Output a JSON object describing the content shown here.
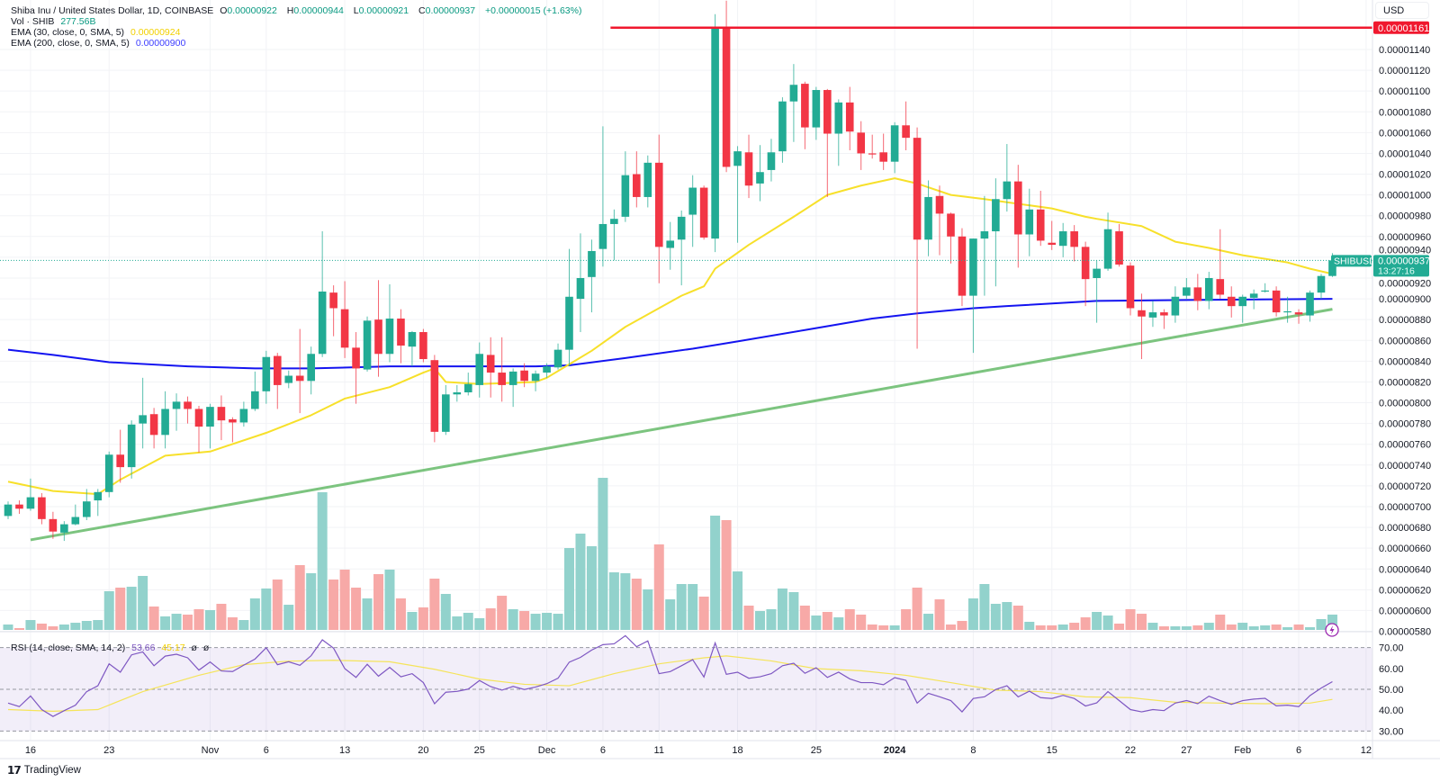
{
  "header": {
    "symbol_title": "Shiba Inu / United States Dollar, 1D, COINBASE",
    "o_label": "O",
    "o": "0.00000922",
    "h_label": "H",
    "h": "0.00000944",
    "l_label": "L",
    "l": "0.00000921",
    "c_label": "C",
    "c": "0.00000937",
    "change": "+0.00000015 (+1.63%)"
  },
  "volume_legend": {
    "label": "Vol · SHIB",
    "value": "277.56B"
  },
  "ema30": {
    "label": "EMA (30, close, 0, SMA, 5)",
    "value": "0.00000924"
  },
  "ema200": {
    "label": "EMA (200, close, 0, SMA, 5)",
    "value": "0.00000900"
  },
  "rsi_legend": {
    "label": "RSI (14, close, SMA, 14, 2)",
    "value": "53.66",
    "sma_value": "45.17",
    "extra1": "ø",
    "extra2": "ø"
  },
  "price_axis": {
    "currency": "USD",
    "ticks": [
      "0.00001140",
      "0.00001120",
      "0.00001100",
      "0.00001080",
      "0.00001060",
      "0.00001040",
      "0.00001020",
      "0.00001000",
      "0.00000980",
      "0.00000960",
      "0.00000940",
      "0.00000920",
      "0.00000900",
      "0.00000880",
      "0.00000860",
      "0.00000840",
      "0.00000820",
      "0.00000800",
      "0.00000780",
      "0.00000760",
      "0.00000740",
      "0.00000720",
      "0.00000700",
      "0.00000680",
      "0.00000660",
      "0.00000640",
      "0.00000620",
      "0.00000600",
      "0.00000580"
    ],
    "resistance_label": "0.00001161",
    "symbol_tag": "SHIBUSD",
    "last_price": "0.00000937",
    "countdown": "13:27:16"
  },
  "rsi_axis": {
    "ticks": [
      "70.00",
      "60.00",
      "50.00",
      "40.00",
      "30.00"
    ]
  },
  "time_axis": {
    "labels": [
      {
        "text": "16",
        "date": "2023-10-16"
      },
      {
        "text": "23",
        "date": "2023-10-23"
      },
      {
        "text": "Nov",
        "date": "2023-11-01"
      },
      {
        "text": "6",
        "date": "2023-11-06"
      },
      {
        "text": "13",
        "date": "2023-11-13"
      },
      {
        "text": "20",
        "date": "2023-11-20"
      },
      {
        "text": "25",
        "date": "2023-11-25"
      },
      {
        "text": "Dec",
        "date": "2023-12-01"
      },
      {
        "text": "6",
        "date": "2023-12-06"
      },
      {
        "text": "11",
        "date": "2023-12-11"
      },
      {
        "text": "18",
        "date": "2023-12-18"
      },
      {
        "text": "25",
        "date": "2023-12-25"
      },
      {
        "text": "2024",
        "date": "2024-01-01",
        "bold": true
      },
      {
        "text": "8",
        "date": "2024-01-08"
      },
      {
        "text": "15",
        "date": "2024-01-15"
      },
      {
        "text": "22",
        "date": "2024-01-22"
      },
      {
        "text": "27",
        "date": "2024-01-27"
      },
      {
        "text": "Feb",
        "date": "2024-02-01"
      },
      {
        "text": "6",
        "date": "2024-02-06"
      },
      {
        "text": "12",
        "date": "2024-02-12"
      }
    ]
  },
  "branding": {
    "name": "TradingView"
  },
  "colors": {
    "up": "#22ab94",
    "down": "#f23645",
    "vol_up": "#92d2cc",
    "vol_down": "#f7a9a7",
    "ema30": "#f7e02a",
    "ema200": "#1414f0",
    "trendline": "#7cc47f",
    "resistance": "#f0182e",
    "rsi": "#7e57c2",
    "rsi_sma": "#f5e45a"
  },
  "chart_data": {
    "type": "candlestick",
    "interval": "1D",
    "start_date": "2023-10-14",
    "price_unit": "1e-8 USD",
    "ylim": [
      580,
      1180
    ],
    "candles_ohlc": [
      [
        691,
        705,
        688,
        702
      ],
      [
        702,
        706,
        693,
        698
      ],
      [
        698,
        727,
        696,
        709
      ],
      [
        709,
        713,
        683,
        688
      ],
      [
        688,
        695,
        669,
        676
      ],
      [
        675,
        686,
        667,
        683
      ],
      [
        683,
        702,
        682,
        690
      ],
      [
        690,
        717,
        687,
        705
      ],
      [
        706,
        717,
        691,
        714
      ],
      [
        714,
        753,
        709,
        750
      ],
      [
        750,
        774,
        723,
        738
      ],
      [
        738,
        783,
        727,
        779
      ],
      [
        780,
        824,
        756,
        788
      ],
      [
        789,
        795,
        756,
        769
      ],
      [
        769,
        811,
        756,
        794
      ],
      [
        794,
        809,
        773,
        801
      ],
      [
        801,
        806,
        780,
        794
      ],
      [
        794,
        797,
        752,
        777
      ],
      [
        777,
        799,
        756,
        796
      ],
      [
        796,
        807,
        764,
        783
      ],
      [
        784,
        786,
        762,
        781
      ],
      [
        781,
        801,
        777,
        794
      ],
      [
        794,
        830,
        792,
        811
      ],
      [
        811,
        850,
        799,
        844
      ],
      [
        845,
        848,
        794,
        817
      ],
      [
        819,
        831,
        814,
        826
      ],
      [
        826,
        871,
        790,
        821
      ],
      [
        821,
        854,
        808,
        847
      ],
      [
        847,
        965,
        844,
        907
      ],
      [
        906,
        913,
        864,
        891
      ],
      [
        890,
        917,
        843,
        853
      ],
      [
        853,
        868,
        799,
        833
      ],
      [
        832,
        883,
        830,
        879
      ],
      [
        880,
        918,
        825,
        847
      ],
      [
        847,
        914,
        839,
        881
      ],
      [
        881,
        890,
        838,
        855
      ],
      [
        854,
        869,
        835,
        868
      ],
      [
        868,
        871,
        839,
        842
      ],
      [
        841,
        846,
        762,
        772
      ],
      [
        772,
        817,
        769,
        808
      ],
      [
        808,
        817,
        801,
        810
      ],
      [
        810,
        829,
        807,
        818
      ],
      [
        817,
        858,
        805,
        847
      ],
      [
        846,
        863,
        805,
        829
      ],
      [
        829,
        863,
        801,
        817
      ],
      [
        817,
        833,
        796,
        830
      ],
      [
        831,
        838,
        815,
        821
      ],
      [
        821,
        831,
        811,
        828
      ],
      [
        829,
        838,
        824,
        835
      ],
      [
        834,
        857,
        832,
        851
      ],
      [
        851,
        948,
        835,
        902
      ],
      [
        900,
        963,
        868,
        920
      ],
      [
        921,
        957,
        887,
        946
      ],
      [
        948,
        1066,
        931,
        972
      ],
      [
        972,
        986,
        937,
        977
      ],
      [
        979,
        1042,
        974,
        1019
      ],
      [
        1020,
        1042,
        988,
        998
      ],
      [
        998,
        1038,
        988,
        1031
      ],
      [
        1031,
        1058,
        915,
        950
      ],
      [
        949,
        974,
        928,
        956
      ],
      [
        957,
        985,
        913,
        979
      ],
      [
        981,
        1019,
        950,
        1007
      ],
      [
        1007,
        1009,
        957,
        959
      ],
      [
        958,
        1174,
        945,
        1160
      ],
      [
        1160,
        1187,
        1022,
        1027
      ],
      [
        1028,
        1047,
        954,
        1042
      ],
      [
        1041,
        1058,
        997,
        1009
      ],
      [
        1011,
        1048,
        994,
        1022
      ],
      [
        1024,
        1054,
        1013,
        1041
      ],
      [
        1042,
        1094,
        1031,
        1090
      ],
      [
        1090,
        1126,
        1051,
        1106
      ],
      [
        1107,
        1109,
        1044,
        1065
      ],
      [
        1065,
        1104,
        1053,
        1101
      ],
      [
        1101,
        1102,
        998,
        1059
      ],
      [
        1059,
        1092,
        1028,
        1089
      ],
      [
        1089,
        1104,
        1043,
        1061
      ],
      [
        1060,
        1071,
        1024,
        1040
      ],
      [
        1040,
        1058,
        1035,
        1039
      ],
      [
        1041,
        1059,
        1024,
        1032
      ],
      [
        1032,
        1070,
        1021,
        1067
      ],
      [
        1067,
        1090,
        1043,
        1055
      ],
      [
        1055,
        1065,
        852,
        957
      ],
      [
        957,
        1014,
        941,
        998
      ],
      [
        999,
        1009,
        942,
        982
      ],
      [
        982,
        983,
        934,
        960
      ],
      [
        960,
        968,
        893,
        903
      ],
      [
        903,
        958,
        848,
        958
      ],
      [
        958,
        999,
        903,
        965
      ],
      [
        965,
        1016,
        912,
        996
      ],
      [
        996,
        1049,
        984,
        1013
      ],
      [
        1013,
        1029,
        930,
        962
      ],
      [
        962,
        1006,
        941,
        986
      ],
      [
        986,
        1004,
        951,
        956
      ],
      [
        954,
        975,
        947,
        952
      ],
      [
        951,
        973,
        940,
        965
      ],
      [
        965,
        971,
        936,
        950
      ],
      [
        950,
        955,
        893,
        919
      ],
      [
        920,
        937,
        877,
        929
      ],
      [
        929,
        983,
        927,
        967
      ],
      [
        965,
        972,
        931,
        933
      ],
      [
        932,
        935,
        884,
        891
      ],
      [
        889,
        905,
        842,
        883
      ],
      [
        882,
        898,
        873,
        887
      ],
      [
        887,
        890,
        871,
        884
      ],
      [
        884,
        912,
        877,
        902
      ],
      [
        903,
        920,
        900,
        911
      ],
      [
        911,
        924,
        889,
        898
      ],
      [
        898,
        926,
        890,
        920
      ],
      [
        919,
        967,
        900,
        904
      ],
      [
        902,
        912,
        882,
        893
      ],
      [
        893,
        904,
        877,
        902
      ],
      [
        901,
        909,
        890,
        905
      ],
      [
        907,
        915,
        906,
        908
      ],
      [
        908,
        912,
        883,
        887
      ],
      [
        888,
        902,
        877,
        888
      ],
      [
        887,
        890,
        876,
        885
      ],
      [
        884,
        908,
        878,
        906
      ],
      [
        906,
        924,
        900,
        922
      ],
      [
        922,
        944,
        921,
        937
      ]
    ],
    "volume_B": [
      98,
      33,
      179,
      114,
      65,
      98,
      130,
      163,
      179,
      701,
      766,
      782,
      978,
      424,
      245,
      293,
      277,
      375,
      359,
      473,
      228,
      179,
      571,
      750,
      913,
      456,
      1174,
      1027,
      2494,
      913,
      1092,
      766,
      571,
      1011,
      1092,
      571,
      326,
      408,
      929,
      652,
      245,
      310,
      212,
      391,
      619,
      375,
      342,
      293,
      310,
      293,
      1483,
      1744,
      1516,
      2755,
      1043,
      1027,
      929,
      734,
      1549,
      554,
      831,
      831,
      603,
      2070,
      1989,
      1060,
      440,
      342,
      375,
      750,
      685,
      440,
      261,
      326,
      228,
      375,
      277,
      98,
      82,
      82,
      375,
      766,
      293,
      554,
      98,
      163,
      571,
      831,
      473,
      505,
      440,
      147,
      82,
      82,
      98,
      130,
      228,
      326,
      261,
      114,
      375,
      293,
      130,
      65,
      65,
      65,
      82,
      130,
      277,
      98,
      130,
      65,
      82,
      98,
      49,
      98,
      49,
      196,
      277.56
    ],
    "ema30_points": [
      [
        0,
        724
      ],
      [
        4,
        715
      ],
      [
        8,
        712
      ],
      [
        10,
        726
      ],
      [
        14,
        749
      ],
      [
        18,
        753
      ],
      [
        23,
        771
      ],
      [
        27,
        788
      ],
      [
        30,
        804
      ],
      [
        34,
        815
      ],
      [
        37,
        829
      ],
      [
        38,
        833
      ],
      [
        39,
        820
      ],
      [
        42,
        818
      ],
      [
        47,
        820
      ],
      [
        48,
        824
      ],
      [
        52,
        850
      ],
      [
        55,
        873
      ],
      [
        57,
        885
      ],
      [
        60,
        903
      ],
      [
        62,
        912
      ],
      [
        63,
        929
      ],
      [
        66,
        952
      ],
      [
        70,
        979
      ],
      [
        73,
        1000
      ],
      [
        76,
        1009
      ],
      [
        79,
        1016
      ],
      [
        81,
        1011
      ],
      [
        84,
        1000
      ],
      [
        87,
        996
      ],
      [
        89,
        993
      ],
      [
        93,
        987
      ],
      [
        96,
        979
      ],
      [
        97,
        977
      ],
      [
        101,
        970
      ],
      [
        104,
        955
      ],
      [
        107,
        949
      ],
      [
        110,
        942
      ],
      [
        114,
        935
      ],
      [
        116,
        929
      ],
      [
        118,
        924
      ]
    ],
    "ema200_points": [
      [
        0,
        851
      ],
      [
        4,
        846
      ],
      [
        9,
        839
      ],
      [
        16,
        835
      ],
      [
        22,
        833
      ],
      [
        27,
        833
      ],
      [
        34,
        835
      ],
      [
        40,
        835
      ],
      [
        47,
        835
      ],
      [
        50,
        836
      ],
      [
        55,
        843
      ],
      [
        61,
        852
      ],
      [
        65,
        859
      ],
      [
        71,
        870
      ],
      [
        77,
        881
      ],
      [
        81,
        886
      ],
      [
        86,
        891
      ],
      [
        89,
        893
      ],
      [
        97,
        898
      ],
      [
        106,
        899
      ],
      [
        118,
        900
      ]
    ],
    "trendline": [
      [
        2,
        668
      ],
      [
        118,
        890
      ]
    ],
    "resistance": {
      "start_index": 54,
      "price": 1161
    },
    "rsi": [
      43.4,
      41.7,
      46.8,
      40.3,
      37,
      39.8,
      42.4,
      48.9,
      51.7,
      62.2,
      58.2,
      66.5,
      67.9,
      61.3,
      65.9,
      66.8,
      65.1,
      59.2,
      63.1,
      58.8,
      58.5,
      61.6,
      64.5,
      69.9,
      61.8,
      63.2,
      61.5,
      66.1,
      73.7,
      69.7,
      59.9,
      55.7,
      62.0,
      56.3,
      60.5,
      56.0,
      57.5,
      53.2,
      43.1,
      48.6,
      49.0,
      50.1,
      54.2,
      51.3,
      49.6,
      51.4,
      49.9,
      51.1,
      52.7,
      55.3,
      63.0,
      65.3,
      68.8,
      71.4,
      71.8,
      75.7,
      70.4,
      73.2,
      57.5,
      58.5,
      61.3,
      64.2,
      55.9,
      72.2,
      57.2,
      58.2,
      55.3,
      56.0,
      57.5,
      61.3,
      62.5,
      57.7,
      60.3,
      55.7,
      58.2,
      55.0,
      53.2,
      53.2,
      52.2,
      55.6,
      54.3,
      43.4,
      48.1,
      46.4,
      44.6,
      39.2,
      45.6,
      46.4,
      49.9,
      51.7,
      46.4,
      49.1,
      46.0,
      45.6,
      47.1,
      45.6,
      42.0,
      43.5,
      48.9,
      44.6,
      40.3,
      39.2,
      40.3,
      39.8,
      43.4,
      44.6,
      43.1,
      46.7,
      44.6,
      42.8,
      44.6,
      45.3,
      45.7,
      42.1,
      42.4,
      41.7,
      47.0,
      50.6,
      53.66
    ],
    "rsi_sma_points": [
      [
        0,
        40.3
      ],
      [
        4,
        39.5
      ],
      [
        8,
        40.3
      ],
      [
        12,
        48.9
      ],
      [
        17,
        56.7
      ],
      [
        21,
        61.8
      ],
      [
        25,
        63.5
      ],
      [
        29,
        63.9
      ],
      [
        34,
        63.2
      ],
      [
        38,
        59.6
      ],
      [
        42,
        54.9
      ],
      [
        46,
        52.4
      ],
      [
        50,
        51.7
      ],
      [
        54,
        57.5
      ],
      [
        58,
        62.2
      ],
      [
        62,
        65.1
      ],
      [
        64,
        66
      ],
      [
        68,
        63.6
      ],
      [
        72,
        59.9
      ],
      [
        76,
        58.9
      ],
      [
        80,
        56.7
      ],
      [
        84,
        53.2
      ],
      [
        88,
        49.6
      ],
      [
        92,
        48.9
      ],
      [
        96,
        46.4
      ],
      [
        100,
        46
      ],
      [
        104,
        43.8
      ],
      [
        108,
        43.4
      ],
      [
        112,
        43.1
      ],
      [
        116,
        43.4
      ],
      [
        118,
        45.17
      ]
    ],
    "rsi_levels": [
      70,
      50,
      30
    ]
  }
}
